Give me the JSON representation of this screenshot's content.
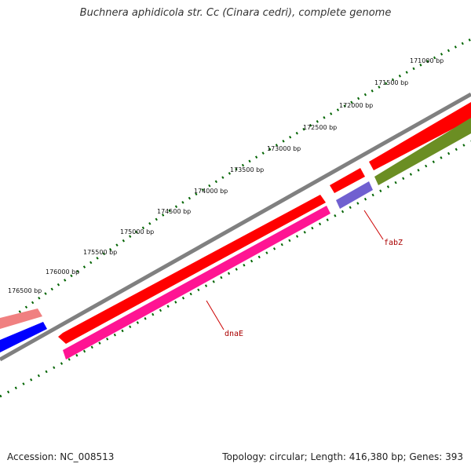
{
  "title": "Buchnera aphidicola str. Cc (Cinara cedri), complete genome",
  "footer": {
    "accession": "Accession: NC_008513",
    "summary": "Topology: circular; Length: 416,380 bp; Genes: 393"
  },
  "scale_ticks": [
    "171000 bp",
    "171500 bp",
    "172000 bp",
    "172500 bp",
    "173000 bp",
    "173500 bp",
    "174000 bp",
    "174500 bp",
    "175000 bp",
    "175500 bp",
    "176000 bp",
    "176500 bp"
  ],
  "gene_labels": {
    "fabZ": "fabZ",
    "dnaE": "dnaE"
  },
  "colors": {
    "backbone": "#808080",
    "forward_cds": "#ff0000",
    "forward_cds_light": "#f08080",
    "reverse_cds_blue": "#0000ff",
    "reverse_cds_violet": "#7060d0",
    "reverse_cds_magenta": "#ff1493",
    "reverse_cds_olive": "#6b8e23",
    "tick_marks": "#006400",
    "leader_line": "#cc0000"
  }
}
